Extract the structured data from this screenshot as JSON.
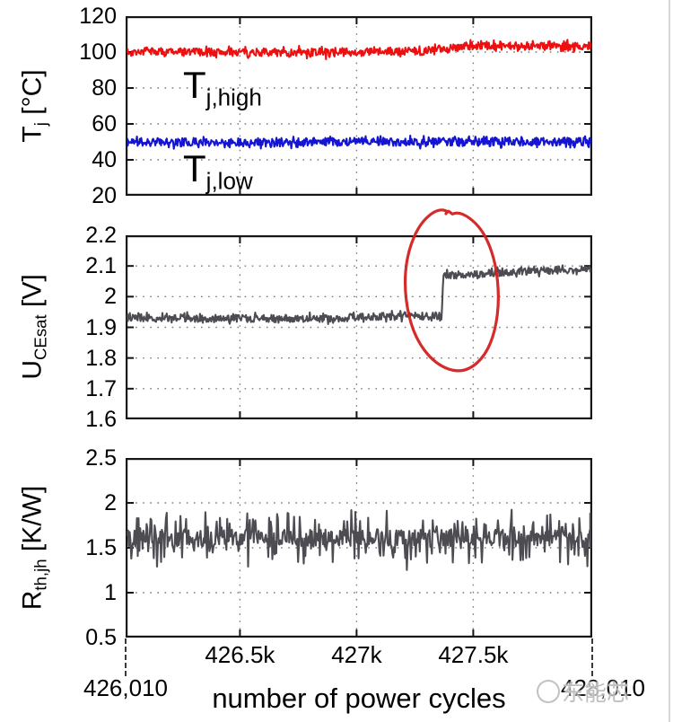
{
  "figure": {
    "xlabel": "number of power cycles",
    "x_start_label": "426,010",
    "x_end_label": "428,010",
    "watermark_text": "东能芯"
  },
  "chart_data": {
    "type": "line",
    "grid": "dotted, on",
    "x": {
      "label": "number of power cycles",
      "min": 426010,
      "max": 428010,
      "ticks": [
        426500,
        427000,
        427500
      ],
      "tick_labels": [
        "426.5k",
        "427k",
        "427.5k"
      ],
      "edge_labels": [
        "426,010",
        "428,010"
      ]
    },
    "panels": [
      {
        "name": "junction-temperature",
        "ylabel": {
          "base": "T",
          "sub": "j",
          "unit": " [°C]"
        },
        "ylim": [
          20,
          120
        ],
        "ytick_values": [
          120,
          100,
          80,
          60,
          40,
          20
        ],
        "ytick_labels": [
          "120",
          "100",
          "80",
          "60",
          "40",
          "20"
        ],
        "grid_y": [
          100,
          80,
          60,
          40
        ],
        "series": [
          {
            "name": "T_j,high",
            "label": {
              "base": "T",
              "sub": "j,high"
            },
            "color": "#ee1010",
            "summary": "noisy ≈100 °C until ≈427.3k cycles, rises to ≈103.5 °C after",
            "segments": [
              [
                426010,
                100.3
              ],
              [
                426700,
                99.8
              ],
              [
                427280,
                100.4
              ],
              [
                427480,
                103.6
              ],
              [
                428010,
                103.4
              ]
            ],
            "noise": 2.3,
            "spike": 1.7,
            "spike_p": 0.3,
            "seed": 7,
            "n": 660
          },
          {
            "name": "T_j,low",
            "label": {
              "base": "T",
              "sub": "j,low"
            },
            "color": "#1414d2",
            "summary": "noisy, constant ≈50 °C",
            "segments": [
              [
                426010,
                49.9
              ],
              [
                428010,
                50.1
              ]
            ],
            "noise": 2.3,
            "spike": 1.7,
            "spike_p": 0.3,
            "seed": 11,
            "n": 660
          }
        ]
      },
      {
        "name": "collector-emitter-saturation-voltage",
        "ylabel": {
          "base": "U",
          "sub": "CEsat",
          "unit": " [V]"
        },
        "ylim": [
          1.6,
          2.2
        ],
        "ytick_values": [
          2.2,
          2.1,
          2.0,
          1.9,
          1.8,
          1.7,
          1.6
        ],
        "ytick_labels": [
          "2.2",
          "2.1",
          "2",
          "1.9",
          "1.8",
          "1.7",
          "1.6"
        ],
        "grid_y": [
          2.1,
          2.0,
          1.9,
          1.8,
          1.7
        ],
        "series": [
          {
            "name": "U_CEsat",
            "color": "#4c4c52",
            "summary": "≈1.93 V, abrupt step to ≈2.07 V at ≈427.37k cycles, drifting up to ≈2.09 V",
            "segments": [
              [
                426010,
                1.93
              ],
              [
                426900,
                1.928
              ],
              [
                427100,
                1.936
              ],
              [
                427365,
                1.937
              ],
              [
                427372,
                2.068
              ],
              [
                427700,
                2.082
              ],
              [
                428010,
                2.091
              ]
            ],
            "noise": 0.012,
            "spike": 0.01,
            "spike_p": 0.25,
            "seed": 23,
            "n": 660
          }
        ],
        "annotation": {
          "shape": "hand-drawn circle",
          "color": "#d32020",
          "marks": "abrupt U_CEsat step increase"
        }
      },
      {
        "name": "thermal-resistance",
        "ylabel": {
          "base": "R",
          "sub": "th,jh",
          "unit": " [K/W]"
        },
        "ylim": [
          0.5,
          2.5
        ],
        "ytick_values": [
          2.5,
          2,
          1.5,
          1,
          0.5
        ],
        "ytick_labels": [
          "2.5",
          "2",
          "1.5",
          "1",
          "0.5"
        ],
        "grid_y": [
          2,
          1.5,
          1
        ],
        "series": [
          {
            "name": "R_th,jh",
            "color": "#4c4c52",
            "summary": "very noisy ≈1.6 K/W, no trend, excursions ≈1.35–1.95 K/W",
            "segments": [
              [
                426010,
                1.61
              ],
              [
                428010,
                1.6
              ]
            ],
            "noise": 0.1,
            "spike": 0.26,
            "spike_p": 0.32,
            "seed": 41,
            "n": 580
          }
        ]
      }
    ]
  }
}
